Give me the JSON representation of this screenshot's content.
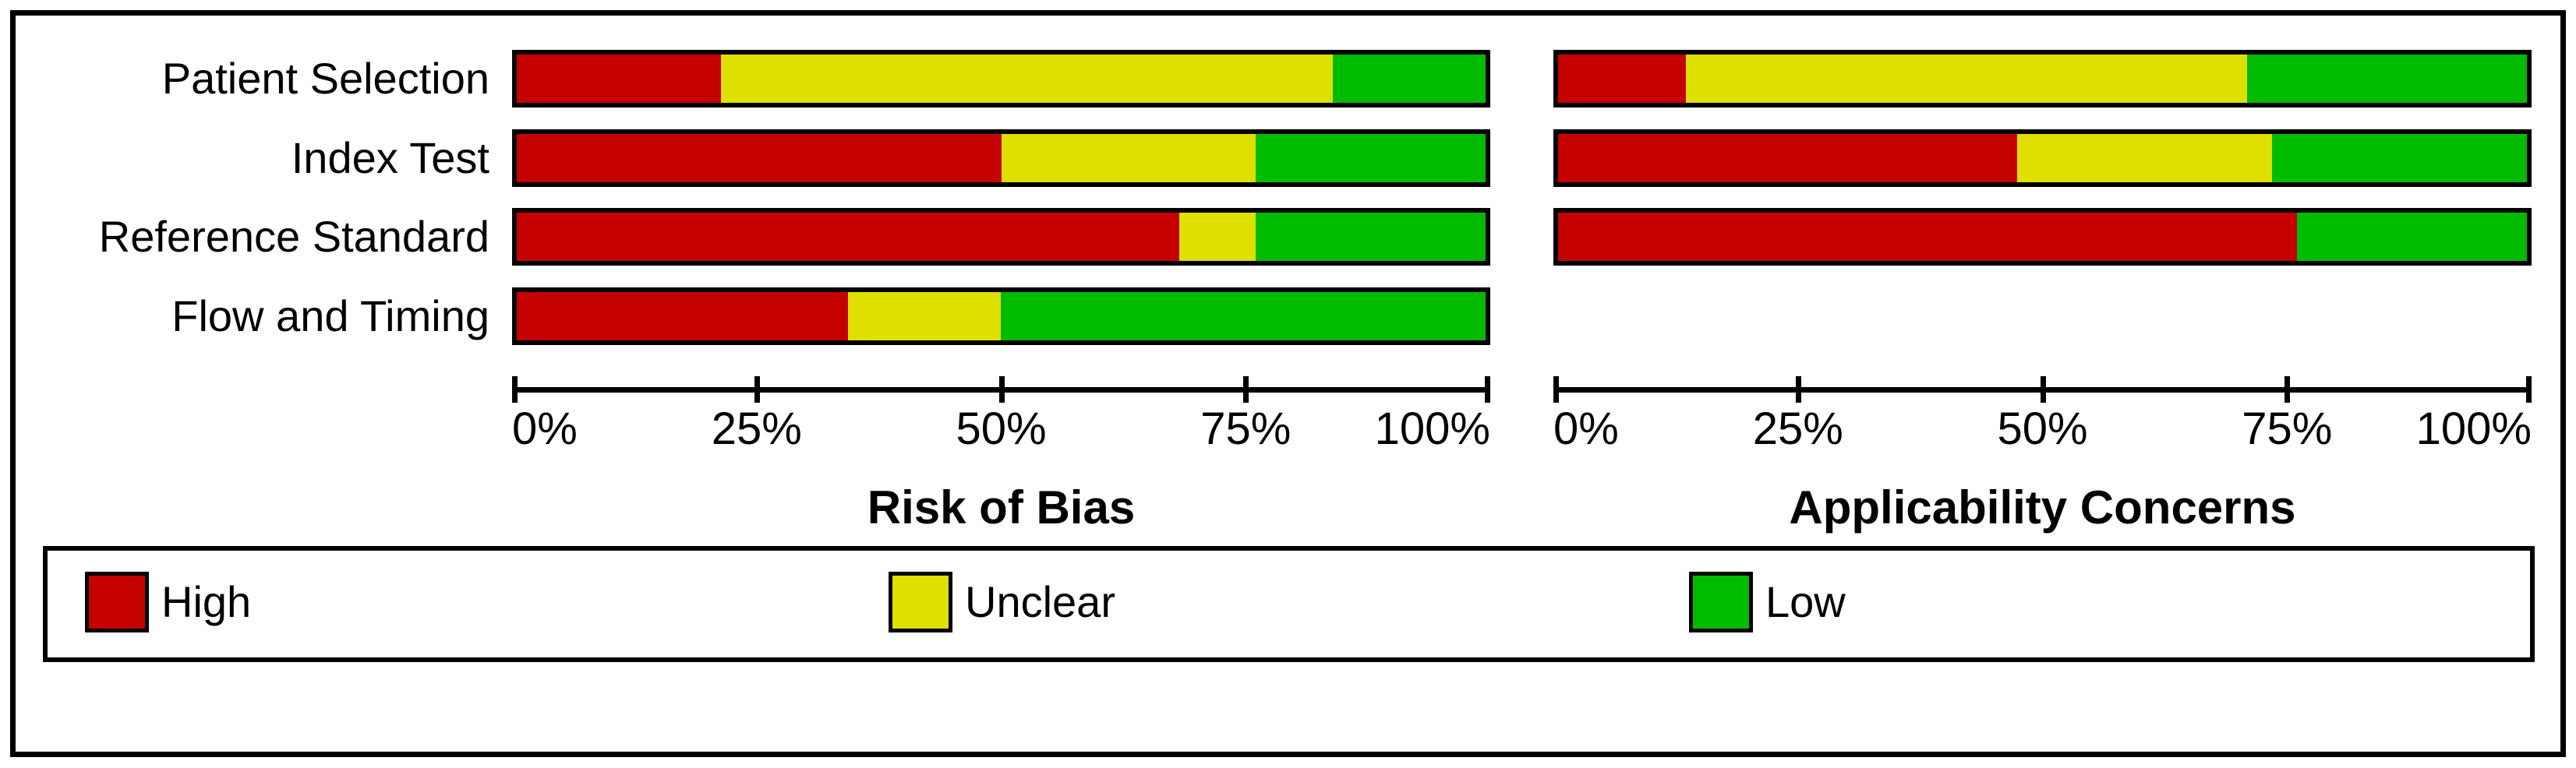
{
  "chart_data": [
    {
      "type": "bar",
      "stacked": true,
      "orientation": "horizontal",
      "title": "Risk of Bias",
      "categories": [
        "Patient Selection",
        "Index Test",
        "Reference Standard",
        "Flow and Timing"
      ],
      "series": [
        {
          "name": "High",
          "color": "#C40000",
          "values": [
            21.1,
            50.0,
            68.4,
            34.2
          ]
        },
        {
          "name": "Unclear",
          "color": "#DFDF00",
          "values": [
            63.2,
            26.3,
            7.9,
            15.8
          ]
        },
        {
          "name": "Low",
          "color": "#00BB00",
          "values": [
            15.8,
            23.7,
            23.7,
            50.0
          ]
        }
      ],
      "xlim": [
        0,
        100
      ],
      "tick_labels": [
        "0%",
        "25%",
        "50%",
        "75%",
        "100%"
      ],
      "grid": false,
      "legend_position": "bottom"
    },
    {
      "type": "bar",
      "stacked": true,
      "orientation": "horizontal",
      "title": "Applicability Concerns",
      "categories": [
        "Patient Selection",
        "Index Test",
        "Reference Standard",
        "Flow and Timing"
      ],
      "series": [
        {
          "name": "High",
          "color": "#C40000",
          "values": [
            13.2,
            47.4,
            76.3,
            null
          ]
        },
        {
          "name": "Unclear",
          "color": "#DFDF00",
          "values": [
            57.9,
            26.3,
            0,
            null
          ]
        },
        {
          "name": "Low",
          "color": "#00BB00",
          "values": [
            28.9,
            26.3,
            23.7,
            null
          ]
        }
      ],
      "xlim": [
        0,
        100
      ],
      "tick_labels": [
        "0%",
        "25%",
        "50%",
        "75%",
        "100%"
      ],
      "grid": false,
      "legend_position": "bottom"
    }
  ],
  "legend": {
    "items": [
      {
        "label": "High",
        "color": "#C40000"
      },
      {
        "label": "Unclear",
        "color": "#DFDF00"
      },
      {
        "label": "Low",
        "color": "#00BB00"
      }
    ]
  },
  "colors": {
    "high": "#C40000",
    "unclear": "#DFDF00",
    "low": "#00BB00",
    "frame": "#000000",
    "background": "#FFFFFF"
  }
}
